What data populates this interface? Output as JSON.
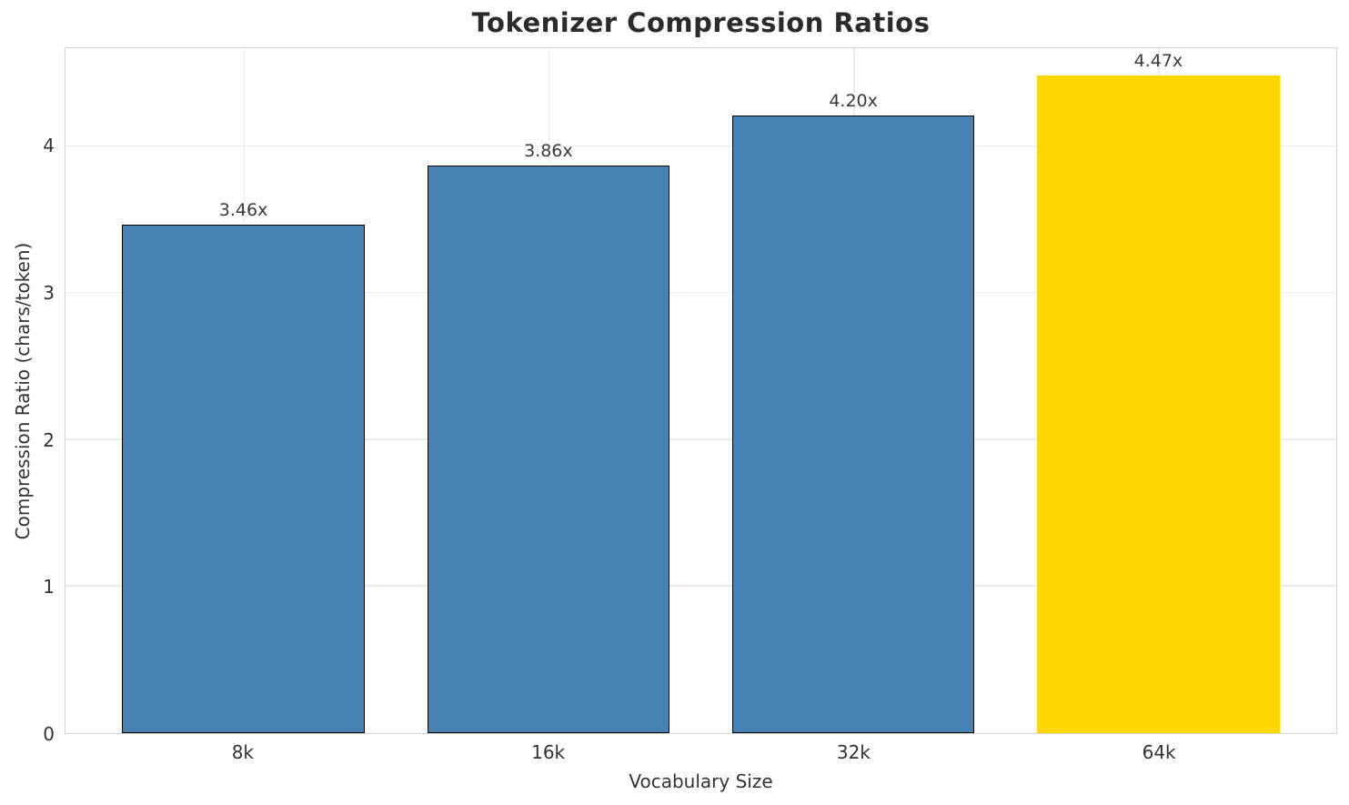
{
  "chart_data": {
    "type": "bar",
    "title": "Tokenizer Compression Ratios",
    "xlabel": "Vocabulary Size",
    "ylabel": "Compression Ratio (chars/token)",
    "categories": [
      "8k",
      "16k",
      "32k",
      "64k"
    ],
    "values": [
      3.46,
      3.86,
      4.2,
      4.47
    ],
    "bar_labels": [
      "3.46x",
      "3.86x",
      "4.20x",
      "4.47x"
    ],
    "yticks": [
      0,
      1,
      2,
      3,
      4
    ],
    "ylim": [
      0,
      4.67
    ],
    "grid": "both",
    "legend": "none",
    "bar_colors": [
      "#4682B4",
      "#4682B4",
      "#4682B4",
      "#FFD700"
    ],
    "bar_edge_colors": [
      "#000000",
      "#000000",
      "#000000",
      "none"
    ],
    "highlight_index": 3
  },
  "colors": {
    "bar_default": "#4682B4",
    "bar_highlight": "#FFD700",
    "bar_edge": "#000000",
    "grid": "#ebebee",
    "spine": "#d4d4d7",
    "title_text": "#2b2b2b",
    "tick_text": "#333333",
    "value_text": "#3a3a3a",
    "background": "#ffffff"
  }
}
